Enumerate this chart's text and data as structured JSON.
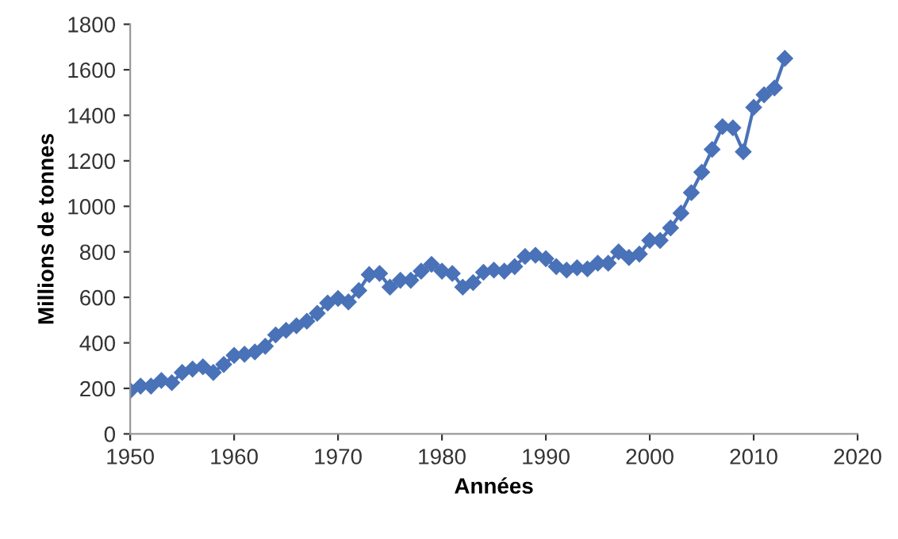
{
  "chart_data": {
    "type": "line",
    "xlabel": "Années",
    "ylabel": "Millions de tonnes",
    "x": [
      1950,
      1951,
      1952,
      1953,
      1954,
      1955,
      1956,
      1957,
      1958,
      1959,
      1960,
      1961,
      1962,
      1963,
      1964,
      1965,
      1966,
      1967,
      1968,
      1969,
      1970,
      1971,
      1972,
      1973,
      1974,
      1975,
      1976,
      1977,
      1978,
      1979,
      1980,
      1981,
      1982,
      1983,
      1984,
      1985,
      1986,
      1987,
      1988,
      1989,
      1990,
      1991,
      1992,
      1993,
      1994,
      1995,
      1996,
      1997,
      1998,
      1999,
      2000,
      2001,
      2002,
      2003,
      2004,
      2005,
      2006,
      2007,
      2008,
      2009,
      2010,
      2011,
      2012,
      2013
    ],
    "series": [
      {
        "color": "#4a72b8",
        "values": [
          190,
          210,
          210,
          235,
          225,
          270,
          285,
          295,
          270,
          305,
          345,
          350,
          360,
          385,
          435,
          455,
          475,
          495,
          530,
          575,
          595,
          580,
          630,
          700,
          705,
          645,
          675,
          675,
          715,
          745,
          715,
          705,
          645,
          665,
          710,
          720,
          715,
          735,
          780,
          785,
          770,
          735,
          720,
          730,
          725,
          750,
          750,
          800,
          775,
          790,
          850,
          850,
          905,
          970,
          1060,
          1150,
          1250,
          1350,
          1345,
          1240,
          1435,
          1490,
          1520,
          1650
        ]
      }
    ],
    "xlim": [
      1950,
      2020
    ],
    "xticks": [
      1950,
      1960,
      1970,
      1980,
      1990,
      2000,
      2010,
      2020
    ],
    "ylim": [
      0,
      1800
    ],
    "yticks": [
      0,
      200,
      400,
      600,
      800,
      1000,
      1200,
      1400,
      1600,
      1800
    ],
    "grid": false,
    "legend": false,
    "marker": "diamond",
    "line_style": "solid"
  }
}
